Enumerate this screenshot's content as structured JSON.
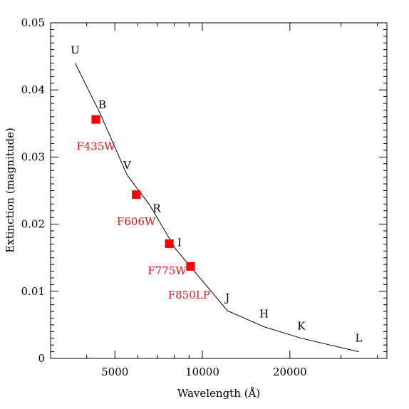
{
  "chart_data": {
    "type": "line",
    "xlabel": "Wavelength (Å)",
    "ylabel": "Extinction (magnitude)",
    "xscale": "log",
    "ylim": [
      0,
      0.05
    ],
    "x_tick_labels": [
      {
        "value": 5000,
        "label": "5000"
      },
      {
        "value": 10000,
        "label": "10000"
      },
      {
        "value": 20000,
        "label": "20000"
      }
    ],
    "y_tick_labels": [
      {
        "value": 0,
        "label": "0"
      },
      {
        "value": 0.01,
        "label": "0.01"
      },
      {
        "value": 0.02,
        "label": "0.02"
      },
      {
        "value": 0.03,
        "label": "0.03"
      },
      {
        "value": 0.04,
        "label": "0.04"
      },
      {
        "value": 0.05,
        "label": "0.05"
      }
    ],
    "series": [
      {
        "type": "line",
        "color": "#000000",
        "points": [
          {
            "band": "U",
            "x": 3650,
            "y": 0.044
          },
          {
            "band": "B",
            "x": 4450,
            "y": 0.0365
          },
          {
            "band": "V",
            "x": 5510,
            "y": 0.0273
          },
          {
            "band": "R",
            "x": 6580,
            "y": 0.0229
          },
          {
            "band": "I",
            "x": 8060,
            "y": 0.0164
          },
          {
            "band": "J",
            "x": 12200,
            "y": 0.0071
          },
          {
            "band": "H",
            "x": 16300,
            "y": 0.0047
          },
          {
            "band": "K",
            "x": 21900,
            "y": 0.003
          },
          {
            "band": "L",
            "x": 34500,
            "y": 0.001
          }
        ]
      },
      {
        "type": "scatter",
        "color": "#ff0000",
        "points": [
          {
            "filter": "F435W",
            "x": 4300,
            "y": 0.0356
          },
          {
            "filter": "F606W",
            "x": 5920,
            "y": 0.0244
          },
          {
            "filter": "F775W",
            "x": 7690,
            "y": 0.0171
          },
          {
            "filter": "F850LP",
            "x": 9100,
            "y": 0.0137
          }
        ]
      }
    ],
    "band_labels": [
      "U",
      "B",
      "V",
      "R",
      "I",
      "J",
      "H",
      "K",
      "L"
    ],
    "filter_labels": [
      "F435W",
      "F606W",
      "F775W",
      "F850LP"
    ],
    "colors": {
      "curve": "#000000",
      "markers": "#ff0000",
      "filter_text": "#e8141b"
    }
  }
}
